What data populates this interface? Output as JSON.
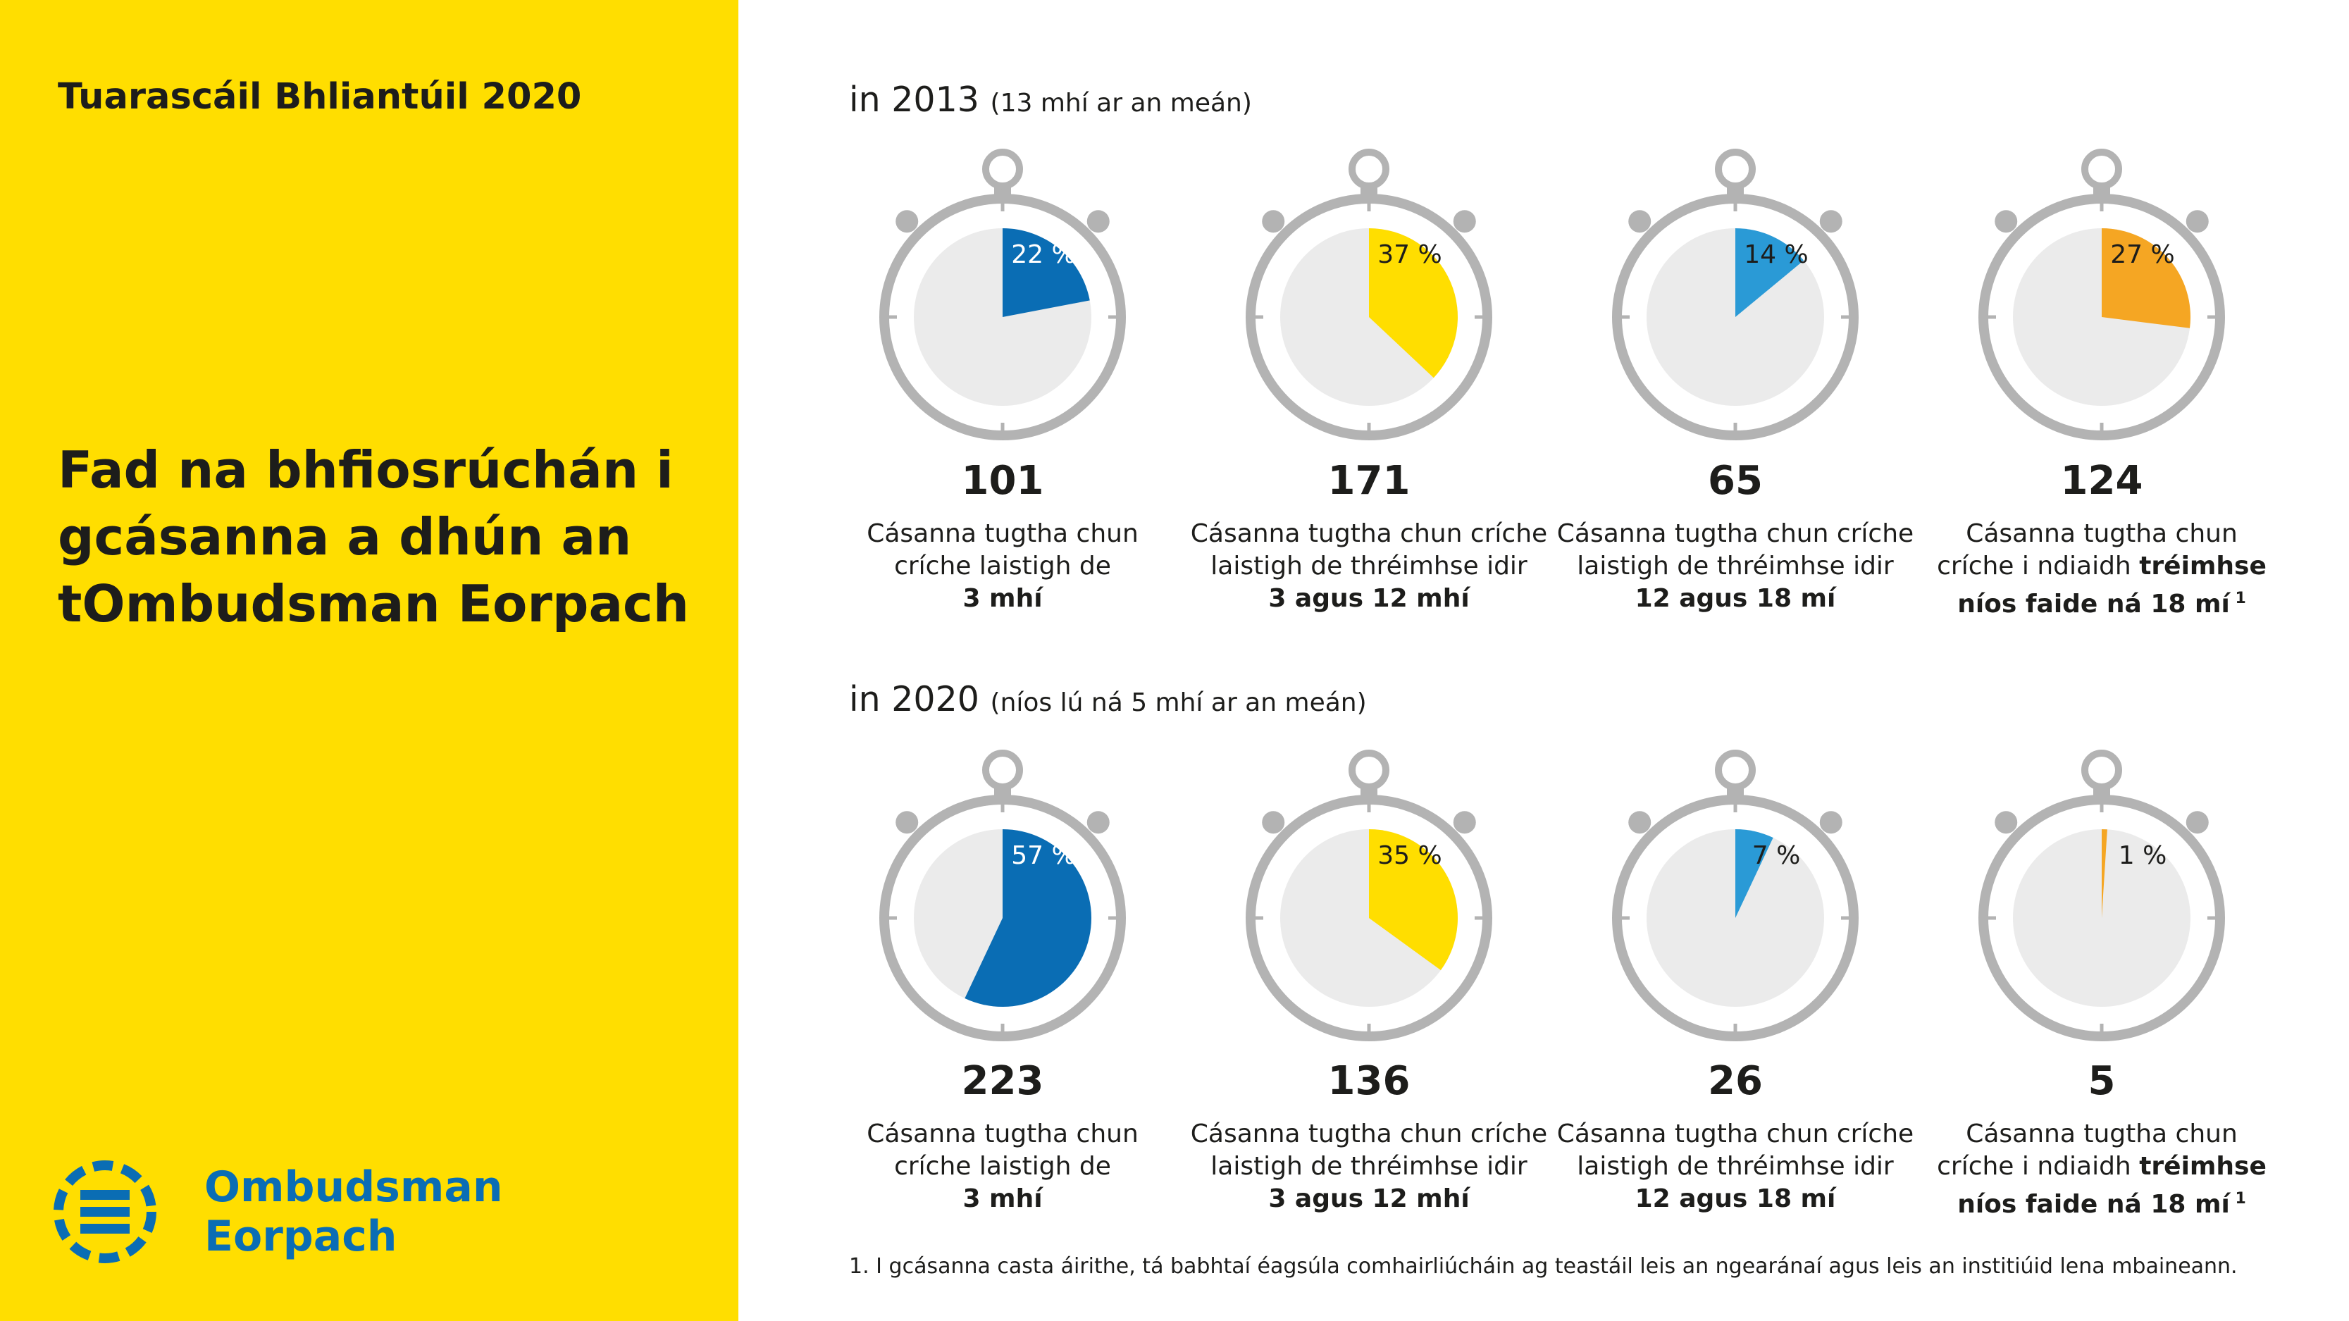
{
  "report_title": "Tuarascáil Bhliantúil 2020",
  "headline": "Fad na bhfiosrúchán i gcásanna a dhún an tOmbudsman Eorpach",
  "logo": {
    "line1": "Ombudsman",
    "line2": "Eorpach",
    "icon": "ombudsman-logo-icon",
    "color": "#0a6db4"
  },
  "colors": {
    "background_left": "#ffde00",
    "slice_blue_dark": "#0a6db4",
    "slice_yellow": "#ffde00",
    "slice_blue_light": "#2a9ad6",
    "slice_orange": "#f5a623",
    "dial": "#ebebeb",
    "ring": "#b3b3b3"
  },
  "chart_data": [
    {
      "type": "pie",
      "title": "in 2013",
      "subtitle": "(13 mhí ar an meán)",
      "categories": [
        "3 mhí",
        "3 agus 12 mhí",
        "12 agus 18 mí",
        "tréimhse níos faide ná 18 mí"
      ],
      "values": [
        22,
        37,
        14,
        27
      ],
      "value_labels": [
        "22 %",
        "37 %",
        "14 %",
        "27 %"
      ],
      "counts": [
        "101",
        "171",
        "65",
        "124"
      ],
      "colors": [
        "#0a6db4",
        "#ffde00",
        "#2a9ad6",
        "#f5a623"
      ],
      "label_colors": [
        "#ffffff",
        "#1d1d1b",
        "#1d1d1b",
        "#1d1d1b"
      ]
    },
    {
      "type": "pie",
      "title": "in 2020",
      "subtitle": "(níos lú ná 5 mhí ar an meán)",
      "categories": [
        "3 mhí",
        "3 agus 12 mhí",
        "12 agus 18 mí",
        "tréimhse níos faide ná 18 mí"
      ],
      "values": [
        57,
        35,
        7,
        1
      ],
      "value_labels": [
        "57 %",
        "35 %",
        "7 %",
        "1 %"
      ],
      "counts": [
        "223",
        "136",
        "26",
        "5"
      ],
      "colors": [
        "#0a6db4",
        "#ffde00",
        "#2a9ad6",
        "#f5a623"
      ],
      "label_colors": [
        "#ffffff",
        "#1d1d1b",
        "#1d1d1b",
        "#1d1d1b"
      ]
    }
  ],
  "captions": [
    {
      "line1": "Cásanna tugtha chun",
      "line2": "críche laistigh de",
      "bold": "3 mhí"
    },
    {
      "line1": "Cásanna tugtha chun críche",
      "line2": "laistigh de thréimhse idir",
      "bold": "3 agus 12 mhí"
    },
    {
      "line1": "Cásanna tugtha chun críche",
      "line2": "laistigh de thréimhse idir",
      "bold": "12 agus 18 mí"
    },
    {
      "line1": "Cásanna tugtha chun",
      "line2a": "críche i ndiaidh ",
      "line2b": "tréimhse",
      "bold": "níos faide ná 18 mí",
      "sup": "1"
    }
  ],
  "footnote": "1. I gcásanna casta áirithe, tá babhtaí éagsúla comhairliúcháin ag teastáil leis an ngearánaí agus leis an institiúid lena mbaineann."
}
